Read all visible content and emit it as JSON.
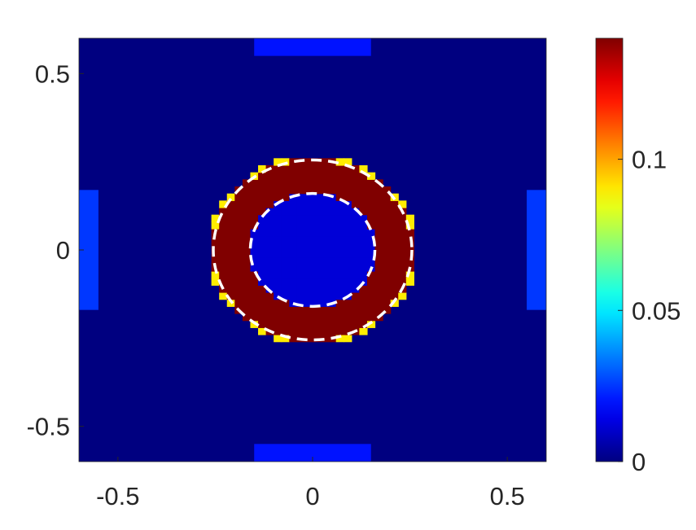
{
  "chart_data": {
    "type": "heatmap",
    "title": "",
    "xlabel": "",
    "ylabel": "",
    "xlim": [
      -0.6,
      0.6
    ],
    "ylim": [
      -0.6,
      0.6
    ],
    "x_ticks": [
      {
        "value": -0.5,
        "label": "-0.5"
      },
      {
        "value": 0,
        "label": "0"
      },
      {
        "value": 0.5,
        "label": "0.5"
      }
    ],
    "y_ticks": [
      {
        "value": 0.5,
        "label": "0.5"
      },
      {
        "value": 0,
        "label": "0"
      },
      {
        "value": -0.5,
        "label": "-0.5"
      }
    ],
    "colormap": "jet",
    "background_value": 0.0,
    "colorbar": {
      "limits": [
        0,
        0.14
      ],
      "ticks": [
        {
          "value": 0,
          "label": "0"
        },
        {
          "value": 0.05,
          "label": "0.05"
        },
        {
          "value": 0.1,
          "label": "0.1"
        }
      ]
    },
    "ring": {
      "center": [
        0,
        0
      ],
      "inner_radius": 0.16,
      "outer_radius": 0.255,
      "value": 0.14,
      "edge_value": 0.09,
      "inside_value": 0.012
    },
    "edge_regions": [
      {
        "name": "left-edge",
        "x": [
          -0.6,
          -0.55
        ],
        "y": [
          -0.17,
          0.17
        ],
        "value": 0.025
      },
      {
        "name": "right-edge",
        "x": [
          0.55,
          0.6
        ],
        "y": [
          -0.17,
          0.17
        ],
        "value": 0.025
      },
      {
        "name": "top-edge",
        "x": [
          -0.15,
          0.15
        ],
        "y": [
          0.55,
          0.6
        ],
        "value": 0.02
      },
      {
        "name": "bottom-edge",
        "x": [
          -0.15,
          0.15
        ],
        "y": [
          -0.6,
          -0.55
        ],
        "value": 0.02
      }
    ],
    "contours": [
      {
        "shape": "circle",
        "center": [
          0,
          0
        ],
        "radius": 0.16,
        "style": "dashed",
        "color": "#ffffff"
      },
      {
        "shape": "circle",
        "center": [
          0,
          0
        ],
        "radius": 0.255,
        "style": "dashed",
        "color": "#ffffff"
      }
    ],
    "grid": false,
    "legend": "none"
  }
}
